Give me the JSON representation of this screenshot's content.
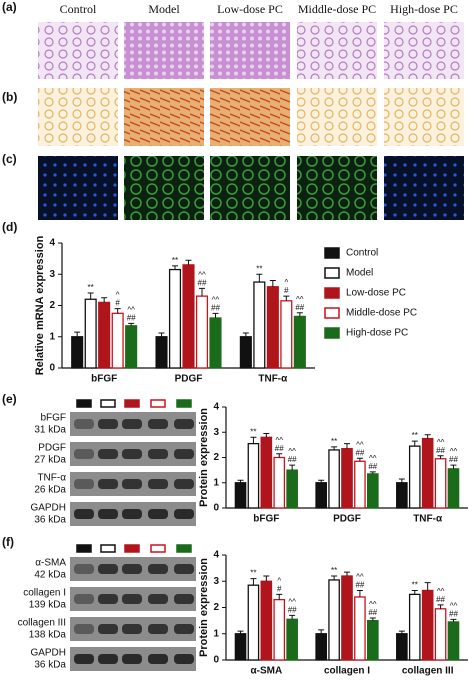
{
  "figure": {
    "panel_labels": [
      "(a)",
      "(b)",
      "(c)",
      "(d)",
      "(e)",
      "(f)"
    ],
    "columns": [
      "Control",
      "Model",
      "Low-dose PC",
      "Middle-dose PC",
      "High-dose PC"
    ],
    "blots_e": [
      {
        "name": "bFGF",
        "size": "31 kDa"
      },
      {
        "name": "PDGF",
        "size": "27 kDa"
      },
      {
        "name": "TNF-α",
        "size": "26 kDa"
      },
      {
        "name": "GAPDH",
        "size": "36 kDa"
      }
    ],
    "blots_f": [
      {
        "name": "α-SMA",
        "size": "42 kDa"
      },
      {
        "name": "collagen I",
        "size": "139 kDa"
      },
      {
        "name": "collagen III",
        "size": "138 kDa"
      },
      {
        "name": "GAPDH",
        "size": "36 kDa"
      }
    ]
  },
  "chart_data": [
    {
      "type": "bar",
      "ylabel": "Relative mRNA expression",
      "categories": [
        "bFGF",
        "PDGF",
        "TNF-α"
      ],
      "ylim": [
        0,
        4
      ],
      "yticks": [
        0,
        1,
        2,
        3,
        4
      ],
      "legend": "right",
      "series": [
        {
          "name": "Control",
          "color": "#111111",
          "fill": "#111111",
          "values": [
            1.0,
            1.0,
            1.0
          ],
          "errors": [
            0.15,
            0.12,
            0.12
          ]
        },
        {
          "name": "Model",
          "color": "#111111",
          "fill": "#ffffff",
          "values": [
            2.2,
            3.15,
            2.75
          ],
          "errors": [
            0.2,
            0.12,
            0.25
          ],
          "sig": [
            [
              "**"
            ],
            [
              "**"
            ],
            [
              "**"
            ]
          ]
        },
        {
          "name": "Low-dose PC",
          "color": "#b0151c",
          "fill": "#b0151c",
          "values": [
            2.1,
            3.3,
            2.6
          ],
          "errors": [
            0.15,
            0.15,
            0.2
          ]
        },
        {
          "name": "Middle-dose PC",
          "color": "#c8141c",
          "fill": "#ffffff",
          "values": [
            1.75,
            2.3,
            2.15
          ],
          "errors": [
            0.15,
            0.25,
            0.15
          ],
          "sig": [
            [
              "^",
              "#"
            ],
            [
              "^^",
              "##"
            ],
            [
              "^",
              "#"
            ]
          ]
        },
        {
          "name": "High-dose PC",
          "color": "#1a6b1a",
          "fill": "#1a6b1a",
          "values": [
            1.35,
            1.6,
            1.65
          ],
          "errors": [
            0.08,
            0.15,
            0.12
          ],
          "sig": [
            [
              "^^",
              "##"
            ],
            [
              "^^",
              "##"
            ],
            [
              "^^",
              "##"
            ]
          ]
        }
      ]
    },
    {
      "type": "bar",
      "ylabel": "Protein expression",
      "categories": [
        "bFGF",
        "PDGF",
        "TNF-α"
      ],
      "ylim": [
        0,
        4
      ],
      "yticks": [
        0,
        1,
        2,
        3,
        4
      ],
      "series": [
        {
          "color": "#111111",
          "fill": "#111111",
          "values": [
            1.0,
            1.0,
            1.0
          ],
          "errors": [
            0.1,
            0.1,
            0.15
          ]
        },
        {
          "color": "#111111",
          "fill": "#ffffff",
          "values": [
            2.55,
            2.3,
            2.45
          ],
          "errors": [
            0.25,
            0.12,
            0.2
          ],
          "sig": [
            [
              "**"
            ],
            [
              "**"
            ],
            [
              "**"
            ]
          ]
        },
        {
          "color": "#b0151c",
          "fill": "#b0151c",
          "values": [
            2.8,
            2.35,
            2.75
          ],
          "errors": [
            0.15,
            0.2,
            0.15
          ]
        },
        {
          "color": "#c8141c",
          "fill": "#ffffff",
          "values": [
            2.0,
            1.85,
            1.95
          ],
          "errors": [
            0.15,
            0.12,
            0.12
          ],
          "sig": [
            [
              "^^",
              "##"
            ],
            [
              "^^",
              "##"
            ],
            [
              "^^",
              "##"
            ]
          ]
        },
        {
          "color": "#1a6b1a",
          "fill": "#1a6b1a",
          "values": [
            1.5,
            1.35,
            1.55
          ],
          "errors": [
            0.2,
            0.08,
            0.15
          ],
          "sig": [
            [
              "^^",
              "##"
            ],
            [
              "^^",
              "##"
            ],
            [
              "^^",
              "##"
            ]
          ]
        }
      ]
    },
    {
      "type": "bar",
      "ylabel": "Protein expression",
      "categories": [
        "α-SMA",
        "collagen I",
        "collagen III"
      ],
      "ylim": [
        0,
        4
      ],
      "yticks": [
        0,
        1,
        2,
        3,
        4
      ],
      "series": [
        {
          "color": "#111111",
          "fill": "#111111",
          "values": [
            1.0,
            1.0,
            1.0
          ],
          "errors": [
            0.1,
            0.15,
            0.1
          ]
        },
        {
          "color": "#111111",
          "fill": "#ffffff",
          "values": [
            2.85,
            3.05,
            2.5
          ],
          "errors": [
            0.25,
            0.15,
            0.15
          ],
          "sig": [
            [
              "**"
            ],
            [
              "**"
            ],
            [
              "**"
            ]
          ]
        },
        {
          "color": "#b0151c",
          "fill": "#b0151c",
          "values": [
            3.0,
            3.2,
            2.65
          ],
          "errors": [
            0.2,
            0.15,
            0.3
          ]
        },
        {
          "color": "#c8141c",
          "fill": "#ffffff",
          "values": [
            2.3,
            2.4,
            1.95
          ],
          "errors": [
            0.2,
            0.25,
            0.15
          ],
          "sig": [
            [
              "^",
              "#"
            ],
            [
              "^^",
              "##"
            ],
            [
              "^^",
              "##"
            ]
          ]
        },
        {
          "color": "#1a6b1a",
          "fill": "#1a6b1a",
          "values": [
            1.55,
            1.5,
            1.45
          ],
          "errors": [
            0.15,
            0.1,
            0.1
          ],
          "sig": [
            [
              "^^",
              "##"
            ],
            [
              "^^",
              "##"
            ],
            [
              "^^",
              "##"
            ]
          ]
        }
      ]
    }
  ]
}
